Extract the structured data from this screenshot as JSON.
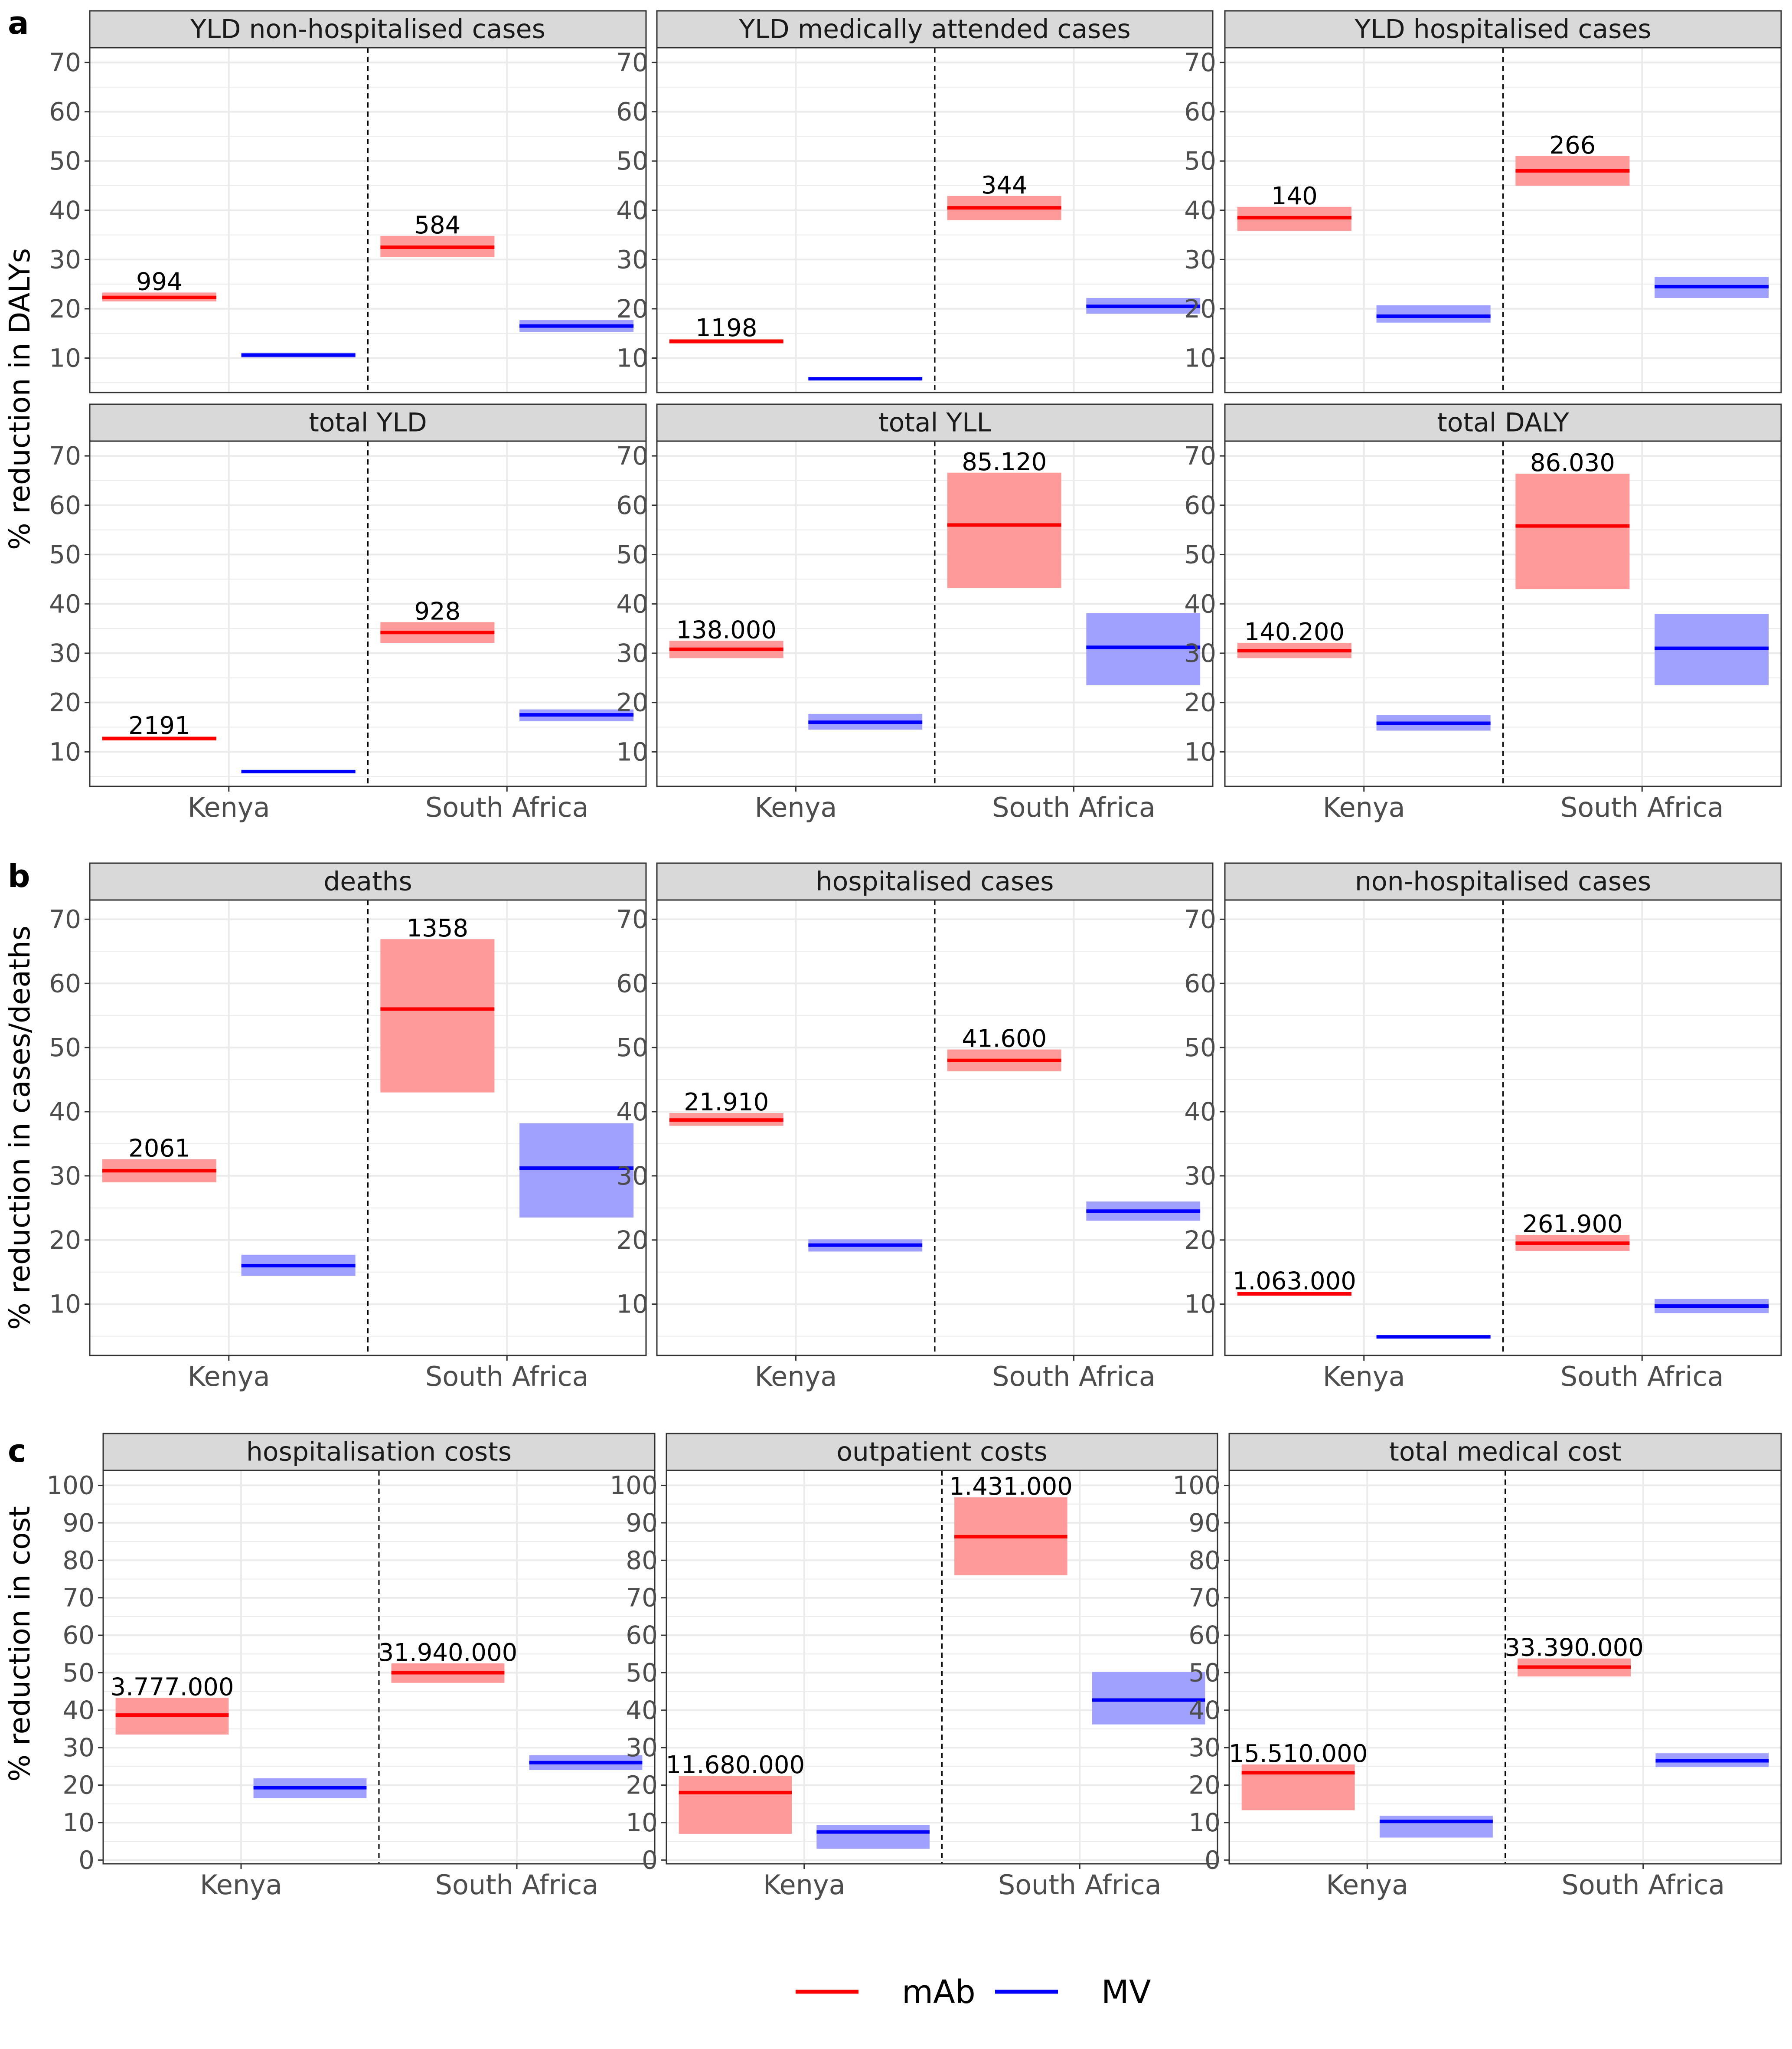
{
  "colors": {
    "mAb": "#ff0000",
    "mAb_band": "#ff9a9a",
    "MV": "#0000ff",
    "MV_band": "#a0a0ff",
    "strip_bg": "#d9d9d9",
    "grid": "#ebebeb"
  },
  "legend": {
    "items": [
      {
        "key": "mAb",
        "label": "mAb"
      },
      {
        "key": "MV",
        "label": "MV"
      }
    ]
  },
  "categories": [
    "Kenya",
    "South Africa"
  ],
  "chart_data": [
    {
      "section": "a",
      "type": "bar",
      "title": "YLD non-hospitalised cases",
      "ylabel": "% reduction in DALYs",
      "ylim": [
        3,
        73
      ],
      "ticks": [
        10,
        20,
        30,
        40,
        50,
        60,
        70
      ],
      "x_tick_labels": false,
      "series": [
        {
          "name": "mAb",
          "points": [
            {
              "x": "Kenya",
              "mid": 22.3,
              "lo": 21.5,
              "hi": 23.3,
              "label": "994"
            },
            {
              "x": "South Africa",
              "mid": 32.5,
              "lo": 30.5,
              "hi": 34.8,
              "label": "584"
            }
          ]
        },
        {
          "name": "MV",
          "points": [
            {
              "x": "Kenya",
              "mid": 10.6,
              "lo": 10.1,
              "hi": 11.1,
              "label": ""
            },
            {
              "x": "South Africa",
              "mid": 16.5,
              "lo": 15.3,
              "hi": 17.7,
              "label": ""
            }
          ]
        }
      ]
    },
    {
      "section": "a",
      "type": "bar",
      "title": "YLD medically attended cases",
      "ylabel": "",
      "ylim": [
        3,
        73
      ],
      "ticks": [
        10,
        20,
        30,
        40,
        50,
        60,
        70
      ],
      "x_tick_labels": false,
      "series": [
        {
          "name": "mAb",
          "points": [
            {
              "x": "Kenya",
              "mid": 13.4,
              "lo": 12.9,
              "hi": 13.9,
              "label": "1198"
            },
            {
              "x": "South Africa",
              "mid": 40.5,
              "lo": 38.0,
              "hi": 42.9,
              "label": "344"
            }
          ]
        },
        {
          "name": "MV",
          "points": [
            {
              "x": "Kenya",
              "mid": 5.8,
              "lo": 5.6,
              "hi": 6.0,
              "label": ""
            },
            {
              "x": "South Africa",
              "mid": 20.5,
              "lo": 19.0,
              "hi": 22.2,
              "label": ""
            }
          ]
        }
      ]
    },
    {
      "section": "a",
      "type": "bar",
      "title": "YLD hospitalised cases",
      "ylabel": "",
      "ylim": [
        3,
        73
      ],
      "ticks": [
        10,
        20,
        30,
        40,
        50,
        60,
        70
      ],
      "x_tick_labels": false,
      "series": [
        {
          "name": "mAb",
          "points": [
            {
              "x": "Kenya",
              "mid": 38.5,
              "lo": 35.8,
              "hi": 40.7,
              "label": "140"
            },
            {
              "x": "South Africa",
              "mid": 48.0,
              "lo": 45.0,
              "hi": 51.0,
              "label": "266"
            }
          ]
        },
        {
          "name": "MV",
          "points": [
            {
              "x": "Kenya",
              "mid": 18.5,
              "lo": 17.2,
              "hi": 20.7,
              "label": ""
            },
            {
              "x": "South Africa",
              "mid": 24.5,
              "lo": 22.2,
              "hi": 26.5,
              "label": ""
            }
          ]
        }
      ]
    },
    {
      "section": "a",
      "type": "bar",
      "title": "total YLD",
      "ylabel": "",
      "ylim": [
        3,
        73
      ],
      "ticks": [
        10,
        20,
        30,
        40,
        50,
        60,
        70
      ],
      "x_tick_labels": true,
      "series": [
        {
          "name": "mAb",
          "points": [
            {
              "x": "Kenya",
              "mid": 12.7,
              "lo": 12.3,
              "hi": 13.1,
              "label": "2191"
            },
            {
              "x": "South Africa",
              "mid": 34.2,
              "lo": 32.1,
              "hi": 36.3,
              "label": "928"
            }
          ]
        },
        {
          "name": "MV",
          "points": [
            {
              "x": "Kenya",
              "mid": 6.0,
              "lo": 5.8,
              "hi": 6.2,
              "label": ""
            },
            {
              "x": "South Africa",
              "mid": 17.5,
              "lo": 16.2,
              "hi": 18.6,
              "label": ""
            }
          ]
        }
      ]
    },
    {
      "section": "a",
      "type": "bar",
      "title": "total YLL",
      "ylabel": "",
      "ylim": [
        3,
        73
      ],
      "ticks": [
        10,
        20,
        30,
        40,
        50,
        60,
        70
      ],
      "x_tick_labels": true,
      "series": [
        {
          "name": "mAb",
          "points": [
            {
              "x": "Kenya",
              "mid": 30.8,
              "lo": 29.0,
              "hi": 32.5,
              "label": "138.000"
            },
            {
              "x": "South Africa",
              "mid": 56.0,
              "lo": 43.2,
              "hi": 66.6,
              "label": "85.120"
            }
          ]
        },
        {
          "name": "MV",
          "points": [
            {
              "x": "Kenya",
              "mid": 16.0,
              "lo": 14.5,
              "hi": 17.7,
              "label": ""
            },
            {
              "x": "South Africa",
              "mid": 31.2,
              "lo": 23.5,
              "hi": 38.1,
              "label": ""
            }
          ]
        }
      ]
    },
    {
      "section": "a",
      "type": "bar",
      "title": "total DALY",
      "ylabel": "",
      "ylim": [
        3,
        73
      ],
      "ticks": [
        10,
        20,
        30,
        40,
        50,
        60,
        70
      ],
      "x_tick_labels": true,
      "series": [
        {
          "name": "mAb",
          "points": [
            {
              "x": "Kenya",
              "mid": 30.5,
              "lo": 29.0,
              "hi": 32.1,
              "label": "140.200"
            },
            {
              "x": "South Africa",
              "mid": 55.8,
              "lo": 43.0,
              "hi": 66.4,
              "label": "86.030"
            }
          ]
        },
        {
          "name": "MV",
          "points": [
            {
              "x": "Kenya",
              "mid": 15.8,
              "lo": 14.3,
              "hi": 17.5,
              "label": ""
            },
            {
              "x": "South Africa",
              "mid": 31.0,
              "lo": 23.5,
              "hi": 38.0,
              "label": ""
            }
          ]
        }
      ]
    },
    {
      "section": "b",
      "type": "bar",
      "title": "deaths",
      "ylabel": "% reduction in cases/deaths",
      "ylim": [
        2,
        73
      ],
      "ticks": [
        10,
        20,
        30,
        40,
        50,
        60,
        70
      ],
      "x_tick_labels": true,
      "series": [
        {
          "name": "mAb",
          "points": [
            {
              "x": "Kenya",
              "mid": 30.8,
              "lo": 29.0,
              "hi": 32.6,
              "label": "2061"
            },
            {
              "x": "South Africa",
              "mid": 56.0,
              "lo": 43.0,
              "hi": 66.9,
              "label": "1358"
            }
          ]
        },
        {
          "name": "MV",
          "points": [
            {
              "x": "Kenya",
              "mid": 16.0,
              "lo": 14.4,
              "hi": 17.7,
              "label": ""
            },
            {
              "x": "South Africa",
              "mid": 31.2,
              "lo": 23.5,
              "hi": 38.2,
              "label": ""
            }
          ]
        }
      ]
    },
    {
      "section": "b",
      "type": "bar",
      "title": "hospitalised cases",
      "ylabel": "",
      "ylim": [
        2,
        73
      ],
      "ticks": [
        10,
        20,
        30,
        40,
        50,
        60,
        70
      ],
      "x_tick_labels": true,
      "series": [
        {
          "name": "mAb",
          "points": [
            {
              "x": "Kenya",
              "mid": 38.7,
              "lo": 37.8,
              "hi": 39.8,
              "label": "21.910"
            },
            {
              "x": "South Africa",
              "mid": 48.0,
              "lo": 46.3,
              "hi": 49.7,
              "label": "41.600"
            }
          ]
        },
        {
          "name": "MV",
          "points": [
            {
              "x": "Kenya",
              "mid": 19.2,
              "lo": 18.2,
              "hi": 20.1,
              "label": ""
            },
            {
              "x": "South Africa",
              "mid": 24.5,
              "lo": 23.0,
              "hi": 26.0,
              "label": ""
            }
          ]
        }
      ]
    },
    {
      "section": "b",
      "type": "bar",
      "title": "non-hospitalised cases",
      "ylabel": "",
      "ylim": [
        2,
        73
      ],
      "ticks": [
        10,
        20,
        30,
        40,
        50,
        60,
        70
      ],
      "x_tick_labels": true,
      "series": [
        {
          "name": "mAb",
          "points": [
            {
              "x": "Kenya",
              "mid": 11.6,
              "lo": 11.3,
              "hi": 11.9,
              "label": "1.063.000"
            },
            {
              "x": "South Africa",
              "mid": 19.5,
              "lo": 18.3,
              "hi": 20.8,
              "label": "261.900"
            }
          ]
        },
        {
          "name": "MV",
          "points": [
            {
              "x": "Kenya",
              "mid": 4.9,
              "lo": 4.7,
              "hi": 5.1,
              "label": ""
            },
            {
              "x": "South Africa",
              "mid": 9.7,
              "lo": 8.6,
              "hi": 10.8,
              "label": ""
            }
          ]
        }
      ]
    },
    {
      "section": "c",
      "type": "bar",
      "title": "hospitalisation costs",
      "ylabel": "% reduction in cost",
      "ylim": [
        -1,
        104
      ],
      "ticks": [
        0,
        10,
        20,
        30,
        40,
        50,
        60,
        70,
        80,
        90,
        100
      ],
      "x_tick_labels": true,
      "series": [
        {
          "name": "mAb",
          "points": [
            {
              "x": "Kenya",
              "mid": 38.7,
              "lo": 33.5,
              "hi": 43.3,
              "label": "3.777.000"
            },
            {
              "x": "South Africa",
              "mid": 50.0,
              "lo": 47.3,
              "hi": 52.5,
              "label": "31.940.000"
            }
          ]
        },
        {
          "name": "MV",
          "points": [
            {
              "x": "Kenya",
              "mid": 19.3,
              "lo": 16.5,
              "hi": 21.8,
              "label": ""
            },
            {
              "x": "South Africa",
              "mid": 26.0,
              "lo": 24.0,
              "hi": 28.0,
              "label": ""
            }
          ]
        }
      ]
    },
    {
      "section": "c",
      "type": "bar",
      "title": "outpatient costs",
      "ylabel": "",
      "ylim": [
        -1,
        104
      ],
      "ticks": [
        0,
        10,
        20,
        30,
        40,
        50,
        60,
        70,
        80,
        90,
        100
      ],
      "x_tick_labels": true,
      "series": [
        {
          "name": "mAb",
          "points": [
            {
              "x": "Kenya",
              "mid": 18.0,
              "lo": 7.0,
              "hi": 22.5,
              "label": "11.680.000"
            },
            {
              "x": "South Africa",
              "mid": 86.3,
              "lo": 76.0,
              "hi": 96.8,
              "label": "1.431.000"
            }
          ]
        },
        {
          "name": "MV",
          "points": [
            {
              "x": "Kenya",
              "mid": 7.5,
              "lo": 3.0,
              "hi": 9.3,
              "label": ""
            },
            {
              "x": "South Africa",
              "mid": 42.7,
              "lo": 36.2,
              "hi": 50.2,
              "label": ""
            }
          ]
        }
      ]
    },
    {
      "section": "c",
      "type": "bar",
      "title": "total medical cost",
      "ylabel": "",
      "ylim": [
        -1,
        104
      ],
      "ticks": [
        0,
        10,
        20,
        30,
        40,
        50,
        60,
        70,
        80,
        90,
        100
      ],
      "x_tick_labels": true,
      "series": [
        {
          "name": "mAb",
          "points": [
            {
              "x": "Kenya",
              "mid": 23.3,
              "lo": 13.3,
              "hi": 25.5,
              "label": "15.510.000"
            },
            {
              "x": "South Africa",
              "mid": 51.5,
              "lo": 49.0,
              "hi": 53.8,
              "label": "33.390.000"
            }
          ]
        },
        {
          "name": "MV",
          "points": [
            {
              "x": "Kenya",
              "mid": 10.3,
              "lo": 6.0,
              "hi": 11.8,
              "label": ""
            },
            {
              "x": "South Africa",
              "mid": 26.5,
              "lo": 24.8,
              "hi": 28.5,
              "label": ""
            }
          ]
        }
      ]
    }
  ],
  "tags": [
    {
      "id": "a",
      "label": "a"
    },
    {
      "id": "b",
      "label": "b"
    },
    {
      "id": "c",
      "label": "c"
    }
  ],
  "y_titles": [
    {
      "id": "a",
      "label": "% reduction in DALYs"
    },
    {
      "id": "b",
      "label": "% reduction in cases/deaths"
    },
    {
      "id": "c",
      "label": "% reduction in cost"
    }
  ]
}
